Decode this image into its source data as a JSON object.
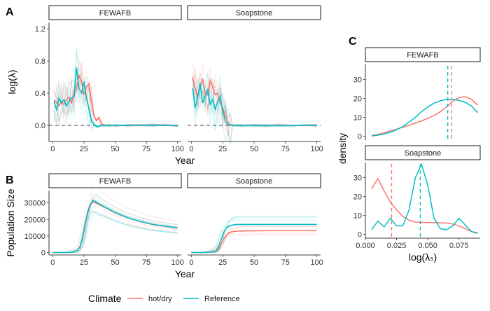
{
  "colors": {
    "hot": "#F8766D",
    "ref": "#00BFC4"
  },
  "legend": {
    "title": "Climate",
    "items": [
      "hot/dry",
      "Reference"
    ]
  },
  "panels": {
    "A": "A",
    "B": "B",
    "C": "C"
  },
  "chart_data": [
    {
      "id": "A",
      "type": "line",
      "facets": [
        "FEWAFB",
        "Soapstone"
      ],
      "xlabel": "Year",
      "ylabel": "log(λ)",
      "xlim": [
        0,
        100
      ],
      "ylim": [
        -0.2,
        1.28
      ],
      "xticks": [
        0,
        25,
        50,
        75,
        100
      ],
      "yticks": [
        0.0,
        0.4,
        0.8,
        1.2
      ],
      "reference_line_y": 0.0,
      "x": [
        1,
        3,
        5,
        7,
        9,
        11,
        13,
        15,
        17,
        19,
        21,
        23,
        25,
        27,
        29,
        31,
        33,
        35,
        37,
        39,
        41,
        45,
        50,
        60,
        70,
        80,
        90,
        100
      ],
      "series": [
        {
          "facet": "FEWAFB",
          "name": "hot/dry",
          "values": [
            0.32,
            0.28,
            0.24,
            0.3,
            0.26,
            0.32,
            0.35,
            0.28,
            0.4,
            0.44,
            0.62,
            0.55,
            0.38,
            0.48,
            0.52,
            0.3,
            0.12,
            0.06,
            0.1,
            0.02,
            0.0,
            0.0,
            0.0,
            0.0,
            0.0,
            0.0,
            0.0,
            0.0
          ]
        },
        {
          "facet": "FEWAFB",
          "name": "Reference",
          "values": [
            0.3,
            0.2,
            0.34,
            0.28,
            0.32,
            0.24,
            0.3,
            0.34,
            0.36,
            0.72,
            0.46,
            0.4,
            0.54,
            0.34,
            0.2,
            0.06,
            0.01,
            -0.01,
            -0.01,
            0.0,
            0.0,
            0.0,
            0.0,
            0.0,
            0.0,
            0.0,
            0.0,
            0.0
          ]
        },
        {
          "facet": "Soapstone",
          "name": "hot/dry",
          "values": [
            0.6,
            0.46,
            0.36,
            0.48,
            0.58,
            0.4,
            0.38,
            0.56,
            0.48,
            0.38,
            0.4,
            0.28,
            0.22,
            0.12,
            0.04,
            0.01,
            0.0,
            0.0,
            0.0,
            0.0,
            0.0,
            0.0,
            0.0,
            0.0,
            0.0,
            0.0,
            0.0,
            0.0
          ]
        },
        {
          "facet": "Soapstone",
          "name": "Reference",
          "values": [
            0.46,
            0.22,
            0.34,
            0.52,
            0.28,
            0.36,
            0.44,
            0.26,
            0.32,
            0.2,
            0.3,
            0.36,
            0.18,
            0.05,
            0.01,
            0.0,
            0.0,
            0.0,
            0.0,
            0.0,
            0.0,
            0.0,
            0.0,
            0.0,
            0.0,
            0.0,
            0.0,
            0.0
          ]
        }
      ]
    },
    {
      "id": "B",
      "type": "line",
      "facets": [
        "FEWAFB",
        "Soapstone"
      ],
      "xlabel": "Year",
      "ylabel": "Population Size",
      "xlim": [
        0,
        100
      ],
      "ylim": [
        -1500,
        37500
      ],
      "xticks": [
        0,
        25,
        50,
        75,
        100
      ],
      "yticks": [
        0,
        10000,
        20000,
        30000
      ],
      "x": [
        0,
        10,
        15,
        20,
        22,
        24,
        26,
        28,
        30,
        32,
        34,
        36,
        40,
        45,
        50,
        60,
        70,
        80,
        90,
        100
      ],
      "series": [
        {
          "facet": "FEWAFB",
          "name": "hot/dry",
          "values": [
            0,
            0,
            200,
            1500,
            4000,
            10000,
            18000,
            25000,
            29000,
            30500,
            30200,
            29500,
            28000,
            26000,
            24000,
            21000,
            18800,
            17000,
            15800,
            14800
          ]
        },
        {
          "facet": "FEWAFB",
          "name": "Reference",
          "values": [
            0,
            0,
            200,
            1400,
            3500,
            9000,
            17000,
            24000,
            28500,
            31500,
            31000,
            30000,
            28200,
            26200,
            24200,
            21000,
            18800,
            17000,
            15900,
            14900
          ]
        },
        {
          "facet": "Soapstone",
          "name": "hot/dry",
          "values": [
            0,
            0,
            100,
            900,
            2500,
            5500,
            8500,
            10500,
            11800,
            12400,
            12700,
            12900,
            13000,
            13100,
            13100,
            13200,
            13200,
            13200,
            13200,
            13200
          ]
        },
        {
          "facet": "Soapstone",
          "name": "Reference",
          "values": [
            0,
            0,
            150,
            1200,
            4000,
            8500,
            12500,
            14800,
            15900,
            16400,
            16700,
            16900,
            17000,
            17000,
            17000,
            17000,
            17000,
            17000,
            17000,
            17000
          ]
        }
      ]
    },
    {
      "id": "C",
      "type": "area",
      "facets": [
        "FEWAFB",
        "Soapstone"
      ],
      "xlabel": "log(λₛ)",
      "ylabel": "density",
      "xlim": [
        0,
        0.092
      ],
      "xticks": [
        0.0,
        0.025,
        0.05,
        0.075
      ],
      "xtick_labels": [
        "0.000",
        "0.025",
        "0.050",
        "0.075"
      ],
      "ylim": [
        -2,
        38
      ],
      "yticks": [
        0,
        10,
        20,
        30
      ],
      "x": [
        0.005,
        0.01,
        0.015,
        0.02,
        0.025,
        0.03,
        0.035,
        0.04,
        0.045,
        0.05,
        0.055,
        0.06,
        0.065,
        0.07,
        0.075,
        0.08,
        0.085,
        0.09
      ],
      "series": [
        {
          "facet": "FEWAFB",
          "name": "hot/dry",
          "values": [
            0.5,
            1.0,
            1.8,
            2.8,
            3.8,
            4.8,
            5.8,
            7.0,
            8.2,
            9.5,
            11.0,
            13.0,
            15.5,
            18.5,
            20.5,
            21.0,
            19.5,
            16.5
          ]
        },
        {
          "facet": "FEWAFB",
          "name": "Reference",
          "values": [
            0.2,
            0.6,
            1.2,
            2.2,
            3.5,
            5.2,
            7.5,
            10.0,
            13.0,
            15.5,
            17.5,
            18.8,
            19.5,
            19.5,
            19.0,
            18.0,
            16.0,
            12.5
          ]
        },
        {
          "facet": "Soapstone",
          "name": "hot/dry",
          "values": [
            24.0,
            29.5,
            23.0,
            17.0,
            13.0,
            9.5,
            7.5,
            6.5,
            6.3,
            6.3,
            6.2,
            6.1,
            6.0,
            5.5,
            4.5,
            3.0,
            1.5,
            0.8
          ]
        },
        {
          "facet": "Soapstone",
          "name": "Reference",
          "values": [
            2.5,
            7.0,
            4.0,
            8.5,
            4.5,
            4.5,
            13.0,
            30.0,
            37.0,
            26.0,
            8.5,
            3.0,
            2.5,
            4.5,
            8.5,
            5.0,
            1.5,
            0.5
          ]
        }
      ],
      "vlines": [
        {
          "facet": "FEWAFB",
          "name": "hot/dry",
          "x": 0.069
        },
        {
          "facet": "FEWAFB",
          "name": "Reference",
          "x": 0.066
        },
        {
          "facet": "Soapstone",
          "name": "hot/dry",
          "x": 0.021
        },
        {
          "facet": "Soapstone",
          "name": "Reference",
          "x": 0.044
        }
      ]
    }
  ]
}
